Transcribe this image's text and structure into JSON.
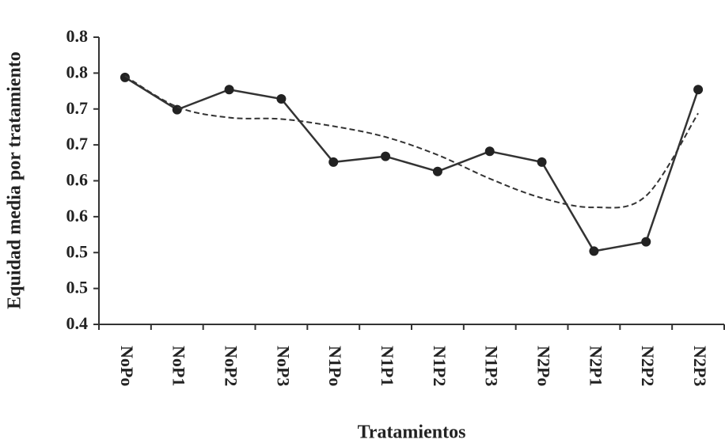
{
  "chart_data": {
    "type": "line",
    "x_label": "Tratamientos",
    "y_label": "Equidad media por tratamiento",
    "categories": [
      "NoPo",
      "NoP1",
      "NoP2",
      "NoP3",
      "N1Po",
      "N1P1",
      "N1P2",
      "N1P3",
      "N2Po",
      "N2P1",
      "N2P2",
      "N2P3"
    ],
    "series": [
      {
        "color": "#333333",
        "style": "solid",
        "markers": true,
        "values": [
          0.744,
          0.699,
          0.727,
          0.714,
          0.626,
          0.634,
          0.613,
          0.641,
          0.626,
          0.502,
          0.515,
          0.727
        ]
      },
      {
        "color": "#333333",
        "style": "dashed",
        "markers": false,
        "values": [
          0.746,
          0.703,
          0.688,
          0.686,
          0.676,
          0.661,
          0.636,
          0.603,
          0.576,
          0.563,
          0.579,
          0.694
        ]
      }
    ],
    "ylim": [
      0.4,
      0.8
    ],
    "yticks": [
      0.4,
      {
        "value": 0.45,
        "label": "0.5"
      },
      0.5,
      {
        "value": 0.55,
        "label": "0.6"
      },
      0.6,
      {
        "value": 0.65,
        "label": "0.7"
      },
      0.7,
      {
        "value": 0.75,
        "label": "0.8"
      },
      0.8
    ],
    "grid": false
  }
}
